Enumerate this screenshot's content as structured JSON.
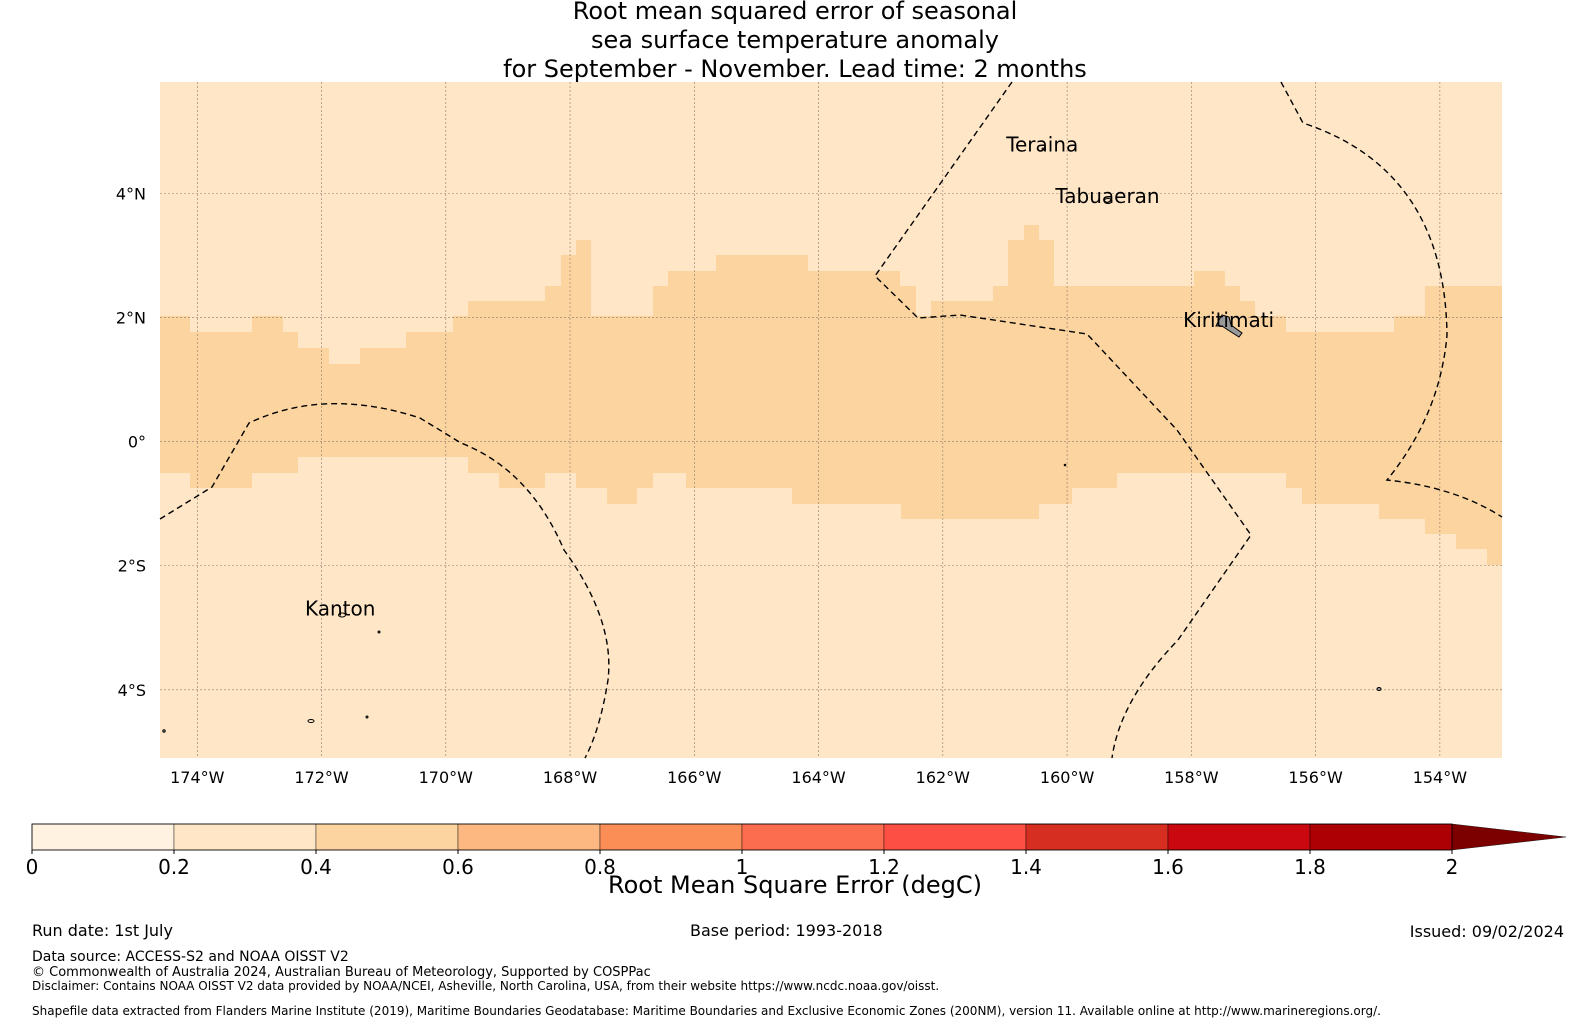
{
  "title_lines": [
    "Root mean squared error of seasonal",
    "sea surface temperature anomaly",
    "for September - November. Lead time: 2 months"
  ],
  "map": {
    "lon_range": [
      -174.6,
      -153.0
    ],
    "lat_range": [
      -5.1,
      5.8
    ],
    "lat_ticks": [
      {
        "value": 4,
        "label": "4°N"
      },
      {
        "value": 2,
        "label": "2°N"
      },
      {
        "value": 0,
        "label": "0°"
      },
      {
        "value": -2,
        "label": "2°S"
      },
      {
        "value": -4,
        "label": "4°S"
      }
    ],
    "lon_ticks": [
      {
        "value": -174,
        "label": "174°W"
      },
      {
        "value": -172,
        "label": "172°W"
      },
      {
        "value": -170,
        "label": "170°W"
      },
      {
        "value": -168,
        "label": "168°W"
      },
      {
        "value": -166,
        "label": "166°W"
      },
      {
        "value": -164,
        "label": "164°W"
      },
      {
        "value": -162,
        "label": "162°W"
      },
      {
        "value": -160,
        "label": "160°W"
      },
      {
        "value": -158,
        "label": "158°W"
      },
      {
        "value": -156,
        "label": "156°W"
      },
      {
        "value": -154,
        "label": "154°W"
      }
    ],
    "colors": {
      "low_band": "#fee6c7",
      "mid_band": "#fcd4a0",
      "grid": "#8a7a6a",
      "land": "#999999"
    },
    "band_value_ranges": [
      {
        "range": [
          0.2,
          0.4
        ],
        "color": "#fee6c7"
      },
      {
        "range": [
          0.4,
          0.6
        ],
        "color": "#fcd4a0"
      }
    ],
    "places": [
      {
        "name": "Teraina",
        "lon": -160.4,
        "lat": 4.68
      },
      {
        "name": "Tabuaeran",
        "lon": -159.35,
        "lat": 3.85
      },
      {
        "name": "Kiritimati",
        "lon": -157.4,
        "lat": 1.85
      },
      {
        "name": "Kanton",
        "lon": -171.7,
        "lat": -2.8
      }
    ]
  },
  "colorbar": {
    "tick_labels": [
      "0",
      "0.2",
      "0.4",
      "0.6",
      "0.8",
      "1",
      "1.2",
      "1.4",
      "1.6",
      "1.8",
      "2"
    ],
    "colors": [
      "#fff2e1",
      "#fee6c7",
      "#fcd4a0",
      "#fcb880",
      "#fb8d57",
      "#fc6c4e",
      "#fe4f45",
      "#d62e20",
      "#c9090f",
      "#ad0005"
    ],
    "extend_color": "#7c0000",
    "label": "Root Mean Square Error (degC)"
  },
  "footer": {
    "run_date": "Run date: 1st July",
    "base_period": "Base period: 1993-2018",
    "issued": "Issued: 09/02/2024",
    "data_source": "Data source: ACCESS-S2 and NOAA OISST V2",
    "copyright": "© Commonwealth of Australia 2024, Australian Bureau of Meteorology, Supported by COSPPac",
    "disclaimer": "Disclaimer: Contains NOAA OISST V2 data provided by NOAA/NCEI, Asheville, North Carolina, USA, from their website https://www.ncdc.noaa.gov/oisst.",
    "shapefile": "Shapefile data extracted from Flanders Marine Institute (2019), Maritime Boundaries Geodatabase: Maritime Boundaries and Exclusive Economic Zones (200NM), version 11. Available online at http://www.marineregions.org/."
  }
}
